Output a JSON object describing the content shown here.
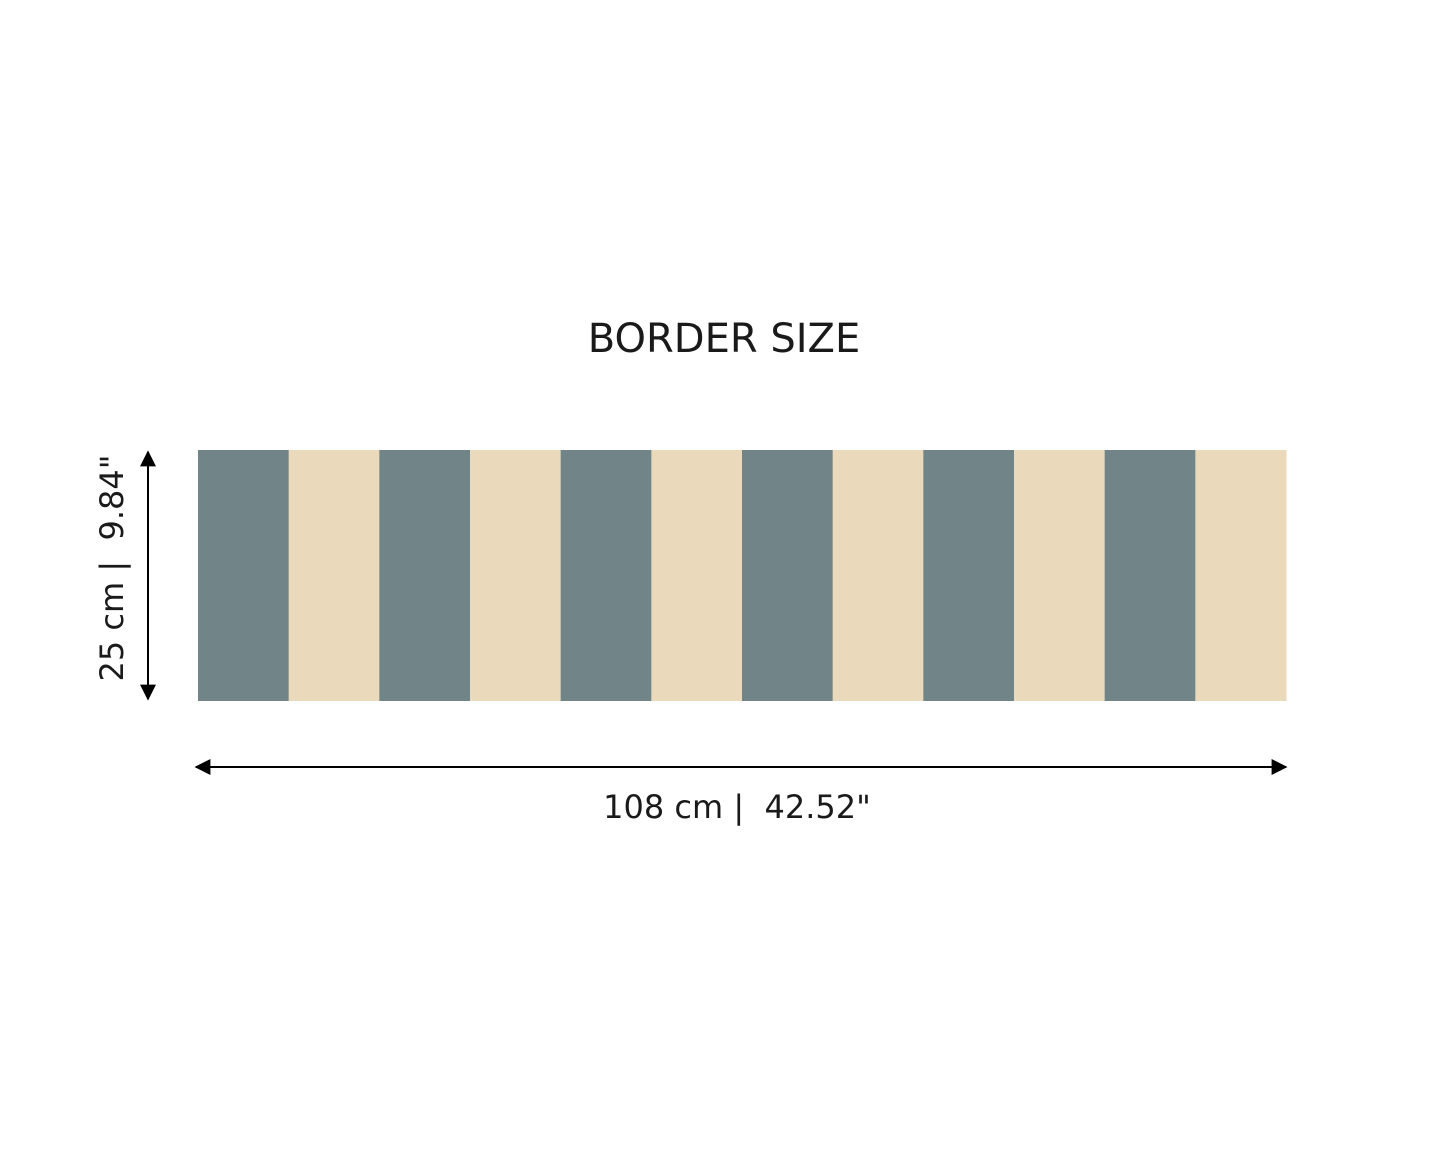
{
  "title": "BORDER SIZE",
  "height_label": "25 cm |  9.84\"",
  "width_label": "108 cm |  42.52\""
}
